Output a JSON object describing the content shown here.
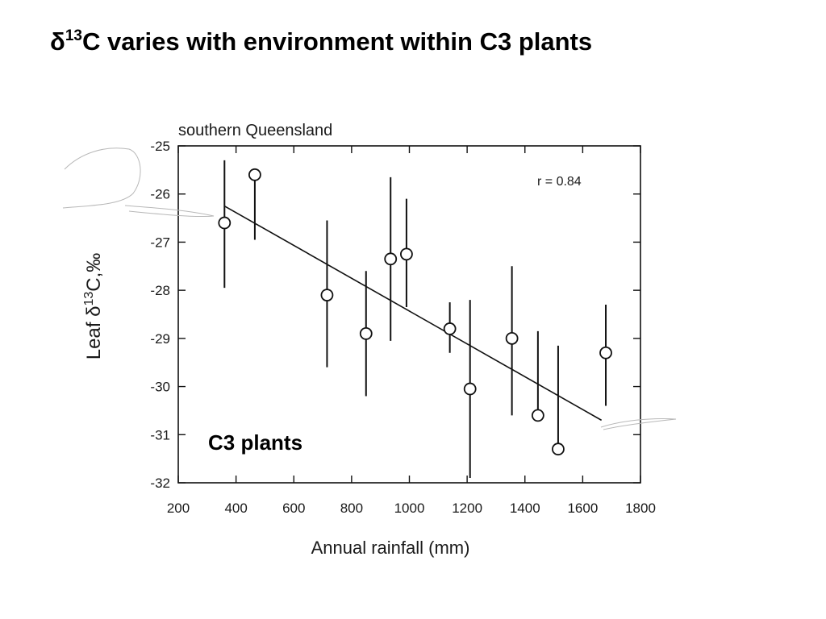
{
  "slide": {
    "title_prefix": "δ",
    "title_sup": "13",
    "title_rest": "C varies with environment within C3 plants"
  },
  "chart_data": {
    "type": "scatter",
    "subtitle": "southern Queensland",
    "xlabel": "Annual rainfall (mm)",
    "ylabel_prefix": "Leaf δ",
    "ylabel_sup": "13",
    "ylabel_rest": "C,‰",
    "xlim": [
      200,
      1800
    ],
    "ylim": [
      -32,
      -25
    ],
    "xticks": [
      200,
      400,
      600,
      800,
      1000,
      1200,
      1400,
      1600,
      1800
    ],
    "yticks": [
      -25,
      -26,
      -27,
      -28,
      -29,
      -30,
      -31,
      -32
    ],
    "annotation": "r = 0.84",
    "series_label": "C3 plants",
    "points": [
      {
        "x": 360,
        "y": -26.6,
        "err_low": -27.95,
        "err_high": -25.3
      },
      {
        "x": 465,
        "y": -25.6,
        "err_low": -26.95,
        "err_high": -25.6
      },
      {
        "x": 715,
        "y": -28.1,
        "err_low": -29.6,
        "err_high": -26.55
      },
      {
        "x": 850,
        "y": -28.9,
        "err_low": -30.2,
        "err_high": -27.6
      },
      {
        "x": 935,
        "y": -27.35,
        "err_low": -29.05,
        "err_high": -25.65
      },
      {
        "x": 990,
        "y": -27.25,
        "err_low": -28.35,
        "err_high": -26.1
      },
      {
        "x": 1140,
        "y": -28.8,
        "err_low": -29.3,
        "err_high": -28.25
      },
      {
        "x": 1210,
        "y": -30.05,
        "err_low": -31.9,
        "err_high": -28.2
      },
      {
        "x": 1355,
        "y": -29.0,
        "err_low": -30.6,
        "err_high": -27.5
      },
      {
        "x": 1445,
        "y": -30.6,
        "err_low": -30.6,
        "err_high": -28.85
      },
      {
        "x": 1515,
        "y": -31.3,
        "err_low": -31.3,
        "err_high": -29.15
      },
      {
        "x": 1680,
        "y": -29.3,
        "err_low": -30.4,
        "err_high": -28.3
      }
    ],
    "trendline": {
      "x": [
        360,
        1665
      ],
      "y": [
        -26.25,
        -30.7
      ]
    },
    "grid": false
  }
}
